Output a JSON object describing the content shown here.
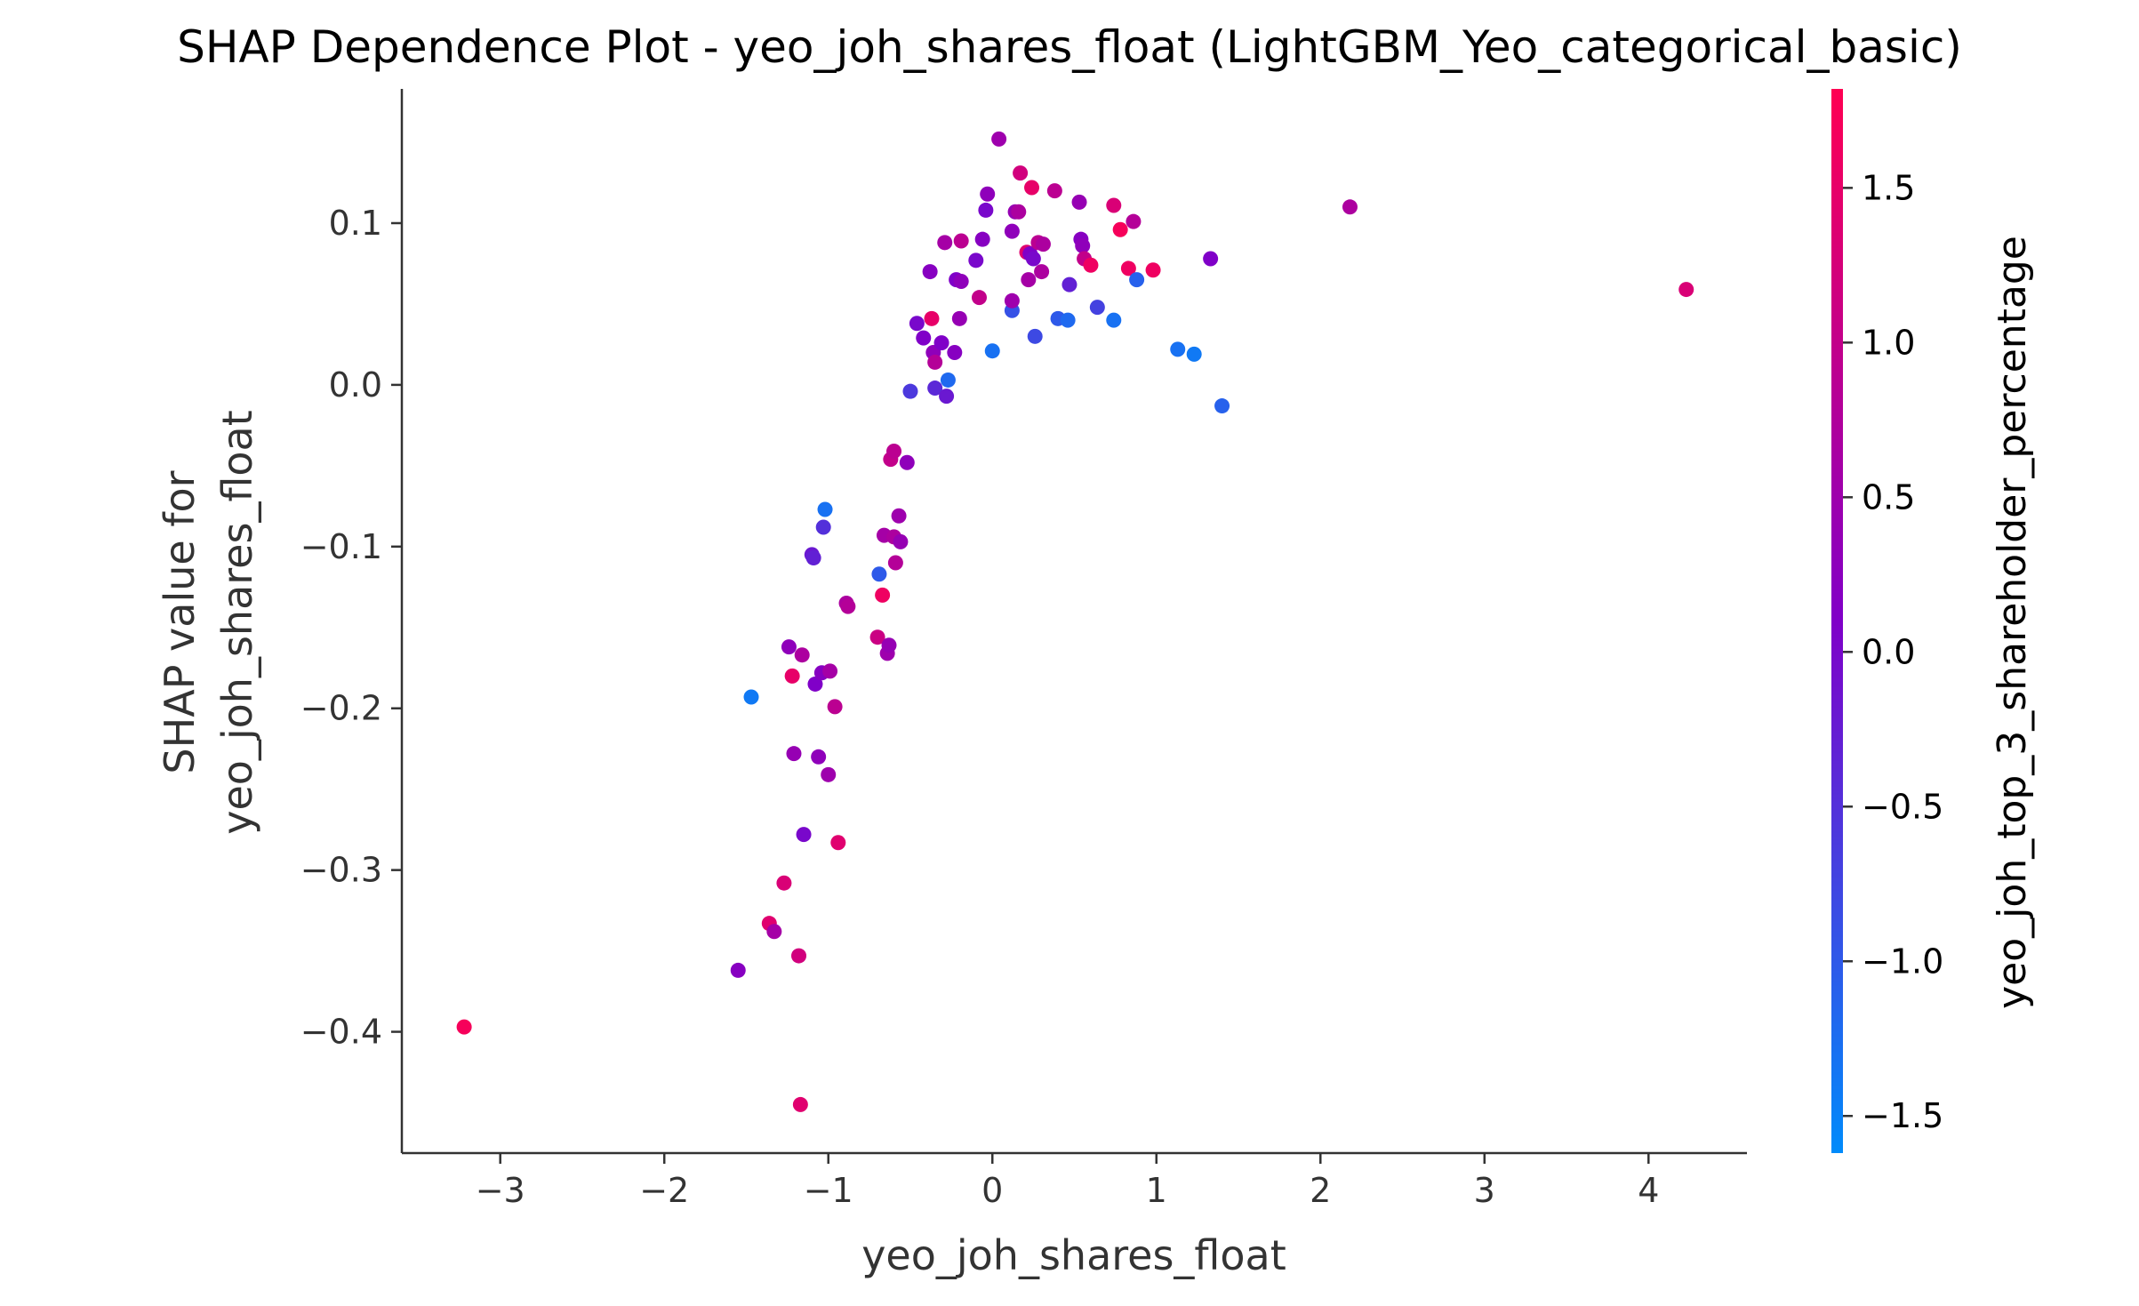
{
  "chart_data": {
    "type": "scatter",
    "title": "SHAP Dependence Plot - yeo_joh_shares_float (LightGBM_Yeo_categorical_basic)",
    "xlabel": "yeo_joh_shares_float",
    "ylabel_line1": "SHAP value for",
    "ylabel_line2": "yeo_joh_shares_float",
    "xlim": [
      -3.6,
      4.6
    ],
    "ylim": [
      -0.475,
      0.183
    ],
    "xticks": [
      -3,
      -2,
      -1,
      0,
      1,
      2,
      3,
      4
    ],
    "xtick_labels": [
      "−3",
      "−2",
      "−1",
      "0",
      "1",
      "2",
      "3",
      "4"
    ],
    "yticks": [
      -0.4,
      -0.3,
      -0.2,
      -0.1,
      0.0,
      0.1
    ],
    "ytick_labels": [
      "−0.4",
      "−0.3",
      "−0.2",
      "−0.1",
      "0.0",
      "0.1"
    ],
    "colorbar": {
      "label": "yeo_joh_top_3_shareholder_percentage",
      "range": [
        -1.62,
        1.82
      ],
      "ticks": [
        -1.5,
        -1.0,
        -0.5,
        0.0,
        0.5,
        1.0,
        1.5
      ],
      "tick_labels": [
        "−1.5",
        "−1.0",
        "−0.5",
        "0.0",
        "0.5",
        "1.0",
        "1.5"
      ],
      "colors": [
        "#008bfb",
        "#8000c8",
        "#ff0052"
      ]
    },
    "points": [
      {
        "x": -3.22,
        "y": -0.397,
        "c": 1.7
      },
      {
        "x": -1.55,
        "y": -0.362,
        "c": 0.2
      },
      {
        "x": -1.47,
        "y": -0.193,
        "c": -1.4
      },
      {
        "x": -1.36,
        "y": -0.333,
        "c": 1.4
      },
      {
        "x": -1.33,
        "y": -0.338,
        "c": 0.6
      },
      {
        "x": -1.27,
        "y": -0.308,
        "c": 1.3
      },
      {
        "x": -1.24,
        "y": -0.162,
        "c": 0.3
      },
      {
        "x": -1.22,
        "y": -0.18,
        "c": 1.5
      },
      {
        "x": -1.21,
        "y": -0.228,
        "c": 0.4
      },
      {
        "x": -1.18,
        "y": -0.353,
        "c": 1.2
      },
      {
        "x": -1.17,
        "y": -0.445,
        "c": 1.4
      },
      {
        "x": -1.16,
        "y": -0.167,
        "c": 0.7
      },
      {
        "x": -1.15,
        "y": -0.278,
        "c": 0.0
      },
      {
        "x": -1.1,
        "y": -0.105,
        "c": -0.2
      },
      {
        "x": -1.09,
        "y": -0.107,
        "c": -0.3
      },
      {
        "x": -1.08,
        "y": -0.185,
        "c": 0.1
      },
      {
        "x": -1.06,
        "y": -0.23,
        "c": 0.3
      },
      {
        "x": -1.04,
        "y": -0.178,
        "c": 0.2
      },
      {
        "x": -1.03,
        "y": -0.088,
        "c": -0.5
      },
      {
        "x": -1.02,
        "y": -0.077,
        "c": -1.3
      },
      {
        "x": -1.0,
        "y": -0.241,
        "c": 0.5
      },
      {
        "x": -0.99,
        "y": -0.177,
        "c": 0.6
      },
      {
        "x": -0.96,
        "y": -0.199,
        "c": 0.9
      },
      {
        "x": -0.94,
        "y": -0.283,
        "c": 1.4
      },
      {
        "x": -0.89,
        "y": -0.135,
        "c": 0.7
      },
      {
        "x": -0.88,
        "y": -0.137,
        "c": 0.8
      },
      {
        "x": -0.7,
        "y": -0.156,
        "c": 1.1
      },
      {
        "x": -0.69,
        "y": -0.117,
        "c": -1.0
      },
      {
        "x": -0.67,
        "y": -0.13,
        "c": 1.6
      },
      {
        "x": -0.66,
        "y": -0.093,
        "c": 0.6
      },
      {
        "x": -0.64,
        "y": -0.166,
        "c": 0.5
      },
      {
        "x": -0.63,
        "y": -0.161,
        "c": 0.4
      },
      {
        "x": -0.62,
        "y": -0.046,
        "c": 1.0
      },
      {
        "x": -0.6,
        "y": -0.094,
        "c": 0.7
      },
      {
        "x": -0.6,
        "y": -0.041,
        "c": 0.9
      },
      {
        "x": -0.59,
        "y": -0.11,
        "c": 0.8
      },
      {
        "x": -0.57,
        "y": -0.081,
        "c": 0.5
      },
      {
        "x": -0.56,
        "y": -0.097,
        "c": 0.4
      },
      {
        "x": -0.52,
        "y": -0.048,
        "c": 0.3
      },
      {
        "x": -0.5,
        "y": -0.004,
        "c": -0.6
      },
      {
        "x": -0.46,
        "y": 0.038,
        "c": 0.0
      },
      {
        "x": -0.42,
        "y": 0.029,
        "c": 0.1
      },
      {
        "x": -0.38,
        "y": 0.07,
        "c": 0.2
      },
      {
        "x": -0.37,
        "y": 0.041,
        "c": 1.5
      },
      {
        "x": -0.36,
        "y": 0.02,
        "c": 0.3
      },
      {
        "x": -0.35,
        "y": 0.014,
        "c": 0.8
      },
      {
        "x": -0.35,
        "y": -0.002,
        "c": -0.4
      },
      {
        "x": -0.31,
        "y": 0.026,
        "c": 0.1
      },
      {
        "x": -0.29,
        "y": 0.088,
        "c": 0.6
      },
      {
        "x": -0.28,
        "y": -0.007,
        "c": -0.2
      },
      {
        "x": -0.27,
        "y": 0.003,
        "c": -1.2
      },
      {
        "x": -0.23,
        "y": 0.02,
        "c": 0.2
      },
      {
        "x": -0.22,
        "y": 0.065,
        "c": 0.1
      },
      {
        "x": -0.2,
        "y": 0.041,
        "c": 0.4
      },
      {
        "x": -0.19,
        "y": 0.089,
        "c": 0.9
      },
      {
        "x": -0.19,
        "y": 0.064,
        "c": 0.3
      },
      {
        "x": -0.1,
        "y": 0.077,
        "c": 0.0
      },
      {
        "x": -0.08,
        "y": 0.054,
        "c": 1.0
      },
      {
        "x": -0.06,
        "y": 0.09,
        "c": 0.2
      },
      {
        "x": -0.04,
        "y": 0.108,
        "c": 0.0
      },
      {
        "x": -0.03,
        "y": 0.118,
        "c": 0.3
      },
      {
        "x": 0.0,
        "y": 0.021,
        "c": -1.3
      },
      {
        "x": 0.04,
        "y": 0.152,
        "c": 0.5
      },
      {
        "x": 0.12,
        "y": 0.046,
        "c": -0.9
      },
      {
        "x": 0.12,
        "y": 0.052,
        "c": 0.5
      },
      {
        "x": 0.12,
        "y": 0.095,
        "c": 0.3
      },
      {
        "x": 0.14,
        "y": 0.107,
        "c": 0.4
      },
      {
        "x": 0.16,
        "y": 0.107,
        "c": 0.7
      },
      {
        "x": 0.17,
        "y": 0.131,
        "c": 1.2
      },
      {
        "x": 0.21,
        "y": 0.082,
        "c": 1.4
      },
      {
        "x": 0.22,
        "y": 0.065,
        "c": 0.6
      },
      {
        "x": 0.23,
        "y": 0.081,
        "c": 0.1
      },
      {
        "x": 0.24,
        "y": 0.122,
        "c": 1.5
      },
      {
        "x": 0.25,
        "y": 0.078,
        "c": 0.0
      },
      {
        "x": 0.26,
        "y": 0.03,
        "c": -0.8
      },
      {
        "x": 0.28,
        "y": 0.088,
        "c": 0.9
      },
      {
        "x": 0.3,
        "y": 0.07,
        "c": 0.7
      },
      {
        "x": 0.31,
        "y": 0.087,
        "c": 0.7
      },
      {
        "x": 0.38,
        "y": 0.12,
        "c": 0.9
      },
      {
        "x": 0.4,
        "y": 0.041,
        "c": -1.0
      },
      {
        "x": 0.46,
        "y": 0.04,
        "c": -1.2
      },
      {
        "x": 0.47,
        "y": 0.062,
        "c": -0.3
      },
      {
        "x": 0.53,
        "y": 0.113,
        "c": 0.4
      },
      {
        "x": 0.54,
        "y": 0.09,
        "c": 0.2
      },
      {
        "x": 0.55,
        "y": 0.086,
        "c": 0.3
      },
      {
        "x": 0.56,
        "y": 0.078,
        "c": 1.0
      },
      {
        "x": 0.6,
        "y": 0.074,
        "c": 1.6
      },
      {
        "x": 0.64,
        "y": 0.048,
        "c": -0.7
      },
      {
        "x": 0.74,
        "y": 0.111,
        "c": 1.3
      },
      {
        "x": 0.74,
        "y": 0.04,
        "c": -1.3
      },
      {
        "x": 0.78,
        "y": 0.096,
        "c": 1.7
      },
      {
        "x": 0.83,
        "y": 0.072,
        "c": 1.6
      },
      {
        "x": 0.86,
        "y": 0.101,
        "c": 0.8
      },
      {
        "x": 0.88,
        "y": 0.065,
        "c": -1.1
      },
      {
        "x": 0.98,
        "y": 0.071,
        "c": 1.6
      },
      {
        "x": 1.13,
        "y": 0.022,
        "c": -1.3
      },
      {
        "x": 1.23,
        "y": 0.019,
        "c": -1.4
      },
      {
        "x": 1.33,
        "y": 0.078,
        "c": 0.1
      },
      {
        "x": 1.4,
        "y": -0.013,
        "c": -1.1
      },
      {
        "x": 2.18,
        "y": 0.11,
        "c": 0.7
      },
      {
        "x": 4.23,
        "y": 0.059,
        "c": 1.3
      }
    ]
  }
}
